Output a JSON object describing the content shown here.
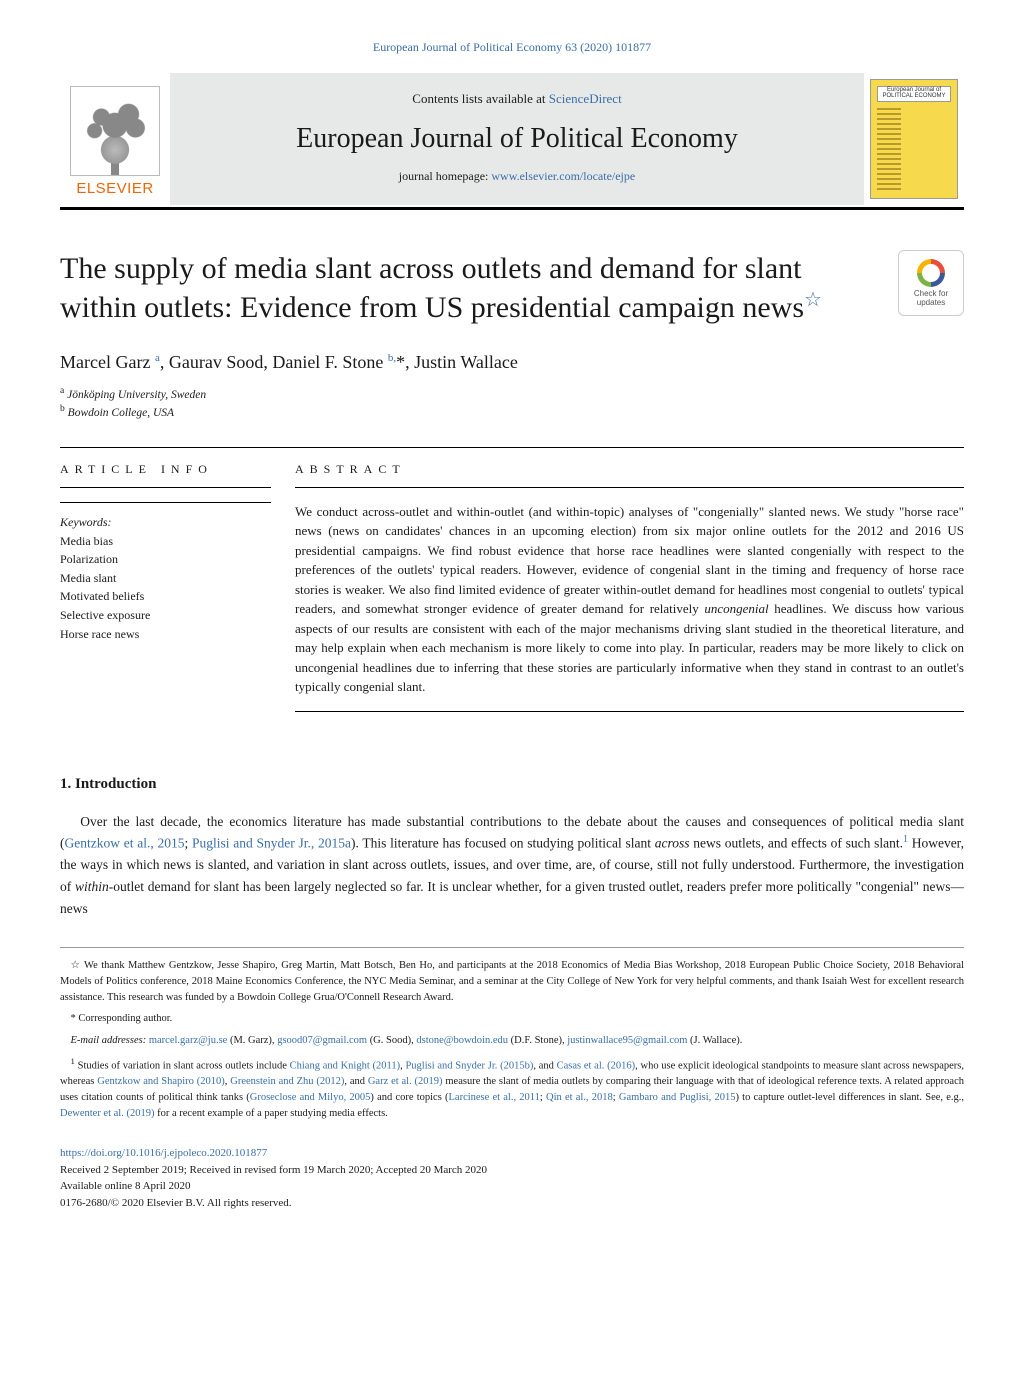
{
  "top_reference": "European Journal of Political Economy 63 (2020) 101877",
  "header": {
    "publisher": "ELSEVIER",
    "avail_prefix": "Contents lists available at ",
    "avail_link": "ScienceDirect",
    "journal_name": "European Journal of Political Economy",
    "homepage_prefix": "journal homepage: ",
    "homepage_link": "www.elsevier.com/locate/ejpe",
    "cover_label": "European Journal of POLITICAL ECONOMY"
  },
  "title_pre": "The supply of media slant across outlets and demand for slant within outlets: Evidence from US presidential campaign news",
  "star": "☆",
  "check_updates": "Check for updates",
  "authors_html": "Marcel Garz <sup>a</sup>, Gaurav Sood, Daniel F. Stone <sup>b,</sup>*, Justin Wallace",
  "affiliations": [
    "a Jönköping University, Sweden",
    "b Bowdoin College, USA"
  ],
  "info_heading": "ARTICLE INFO",
  "keywords_label": "Keywords:",
  "keywords": [
    "Media bias",
    "Polarization",
    "Media slant",
    "Motivated beliefs",
    "Selective exposure",
    "Horse race news"
  ],
  "abstract_heading": "ABSTRACT",
  "abstract": "We conduct across-outlet and within-outlet (and within-topic) analyses of \"congenially\" slanted news. We study \"horse race\" news (news on candidates' chances in an upcoming election) from six major online outlets for the 2012 and 2016 US presidential campaigns. We find robust evidence that horse race headlines were slanted congenially with respect to the preferences of the outlets' typical readers. However, evidence of congenial slant in the timing and frequency of horse race stories is weaker. We also find limited evidence of greater within-outlet demand for headlines most congenial to outlets' typical readers, and somewhat stronger evidence of greater demand for relatively uncongenial headlines. We discuss how various aspects of our results are consistent with each of the major mechanisms driving slant studied in the theoretical literature, and may help explain when each mechanism is more likely to come into play. In particular, readers may be more likely to click on uncongenial headlines due to inferring that these stories are particularly informative when they stand in contrast to an outlet's typically congenial slant.",
  "section1": "1. Introduction",
  "intro_html": "Over the last decade, the economics literature has made substantial contributions to the debate about the causes and consequences of political media slant (<a>Gentzkow et al., 2015</a>; <a>Puglisi and Snyder Jr., 2015a</a>). This literature has focused on studying political slant <em>across</em> news outlets, and effects of such slant.<sup>1</sup> However, the ways in which news is slanted, and variation in slant across outlets, issues, and over time, are, of course, still not fully understood. Furthermore, the investigation of <em>within</em>-outlet demand for slant has been largely neglected so far. It is unclear whether, for a given trusted outlet, readers prefer more politically \"congenial\" news—news",
  "fn_star": "☆ We thank Matthew Gentzkow, Jesse Shapiro, Greg Martin, Matt Botsch, Ben Ho, and participants at the 2018 Economics of Media Bias Workshop, 2018 European Public Choice Society, 2018 Behavioral Models of Politics conference, 2018 Maine Economics Conference, the NYC Media Seminar, and a seminar at the City College of New York for very helpful comments, and thank Isaiah West for excellent research assistance. This research was funded by a Bowdoin College Grua/O'Connell Research Award.",
  "fn_corr": "* Corresponding author.",
  "fn_email_html": "<em>E-mail addresses:</em> <a>marcel.garz@ju.se</a> (M. Garz), <a>gsood07@gmail.com</a> (G. Sood), <a>dstone@bowdoin.edu</a> (D.F. Stone), <a>justinwallace95@gmail.com</a> (J. Wallace).",
  "fn1_html": "<sup>1</sup> Studies of variation in slant across outlets include <a>Chiang and Knight (2011)</a>, <a>Puglisi and Snyder Jr. (2015b)</a>, and <a>Casas et al. (2016)</a>, who use explicit ideological standpoints to measure slant across newspapers, whereas <a>Gentzkow and Shapiro (2010)</a>, <a>Greenstein and Zhu (2012)</a>, and <a>Garz et al. (2019)</a> measure the slant of media outlets by comparing their language with that of ideological reference texts. A related approach uses citation counts of political think tanks (<a>Groseclose and Milyo, 2005</a>) and core topics (<a>Larcinese et al., 2011</a>; <a>Qin et al., 2018</a>; <a>Gambaro and Puglisi, 2015</a>) to capture outlet-level differences in slant. See, e.g., <a>Dewenter et al. (2019)</a> for a recent example of a paper studying media effects.",
  "footer": {
    "doi": "https://doi.org/10.1016/j.ejpoleco.2020.101877",
    "received": "Received 2 September 2019; Received in revised form 19 March 2020; Accepted 20 March 2020",
    "online": "Available online 8 April 2020",
    "copyright": "0176-2680/© 2020 Elsevier B.V. All rights reserved."
  }
}
